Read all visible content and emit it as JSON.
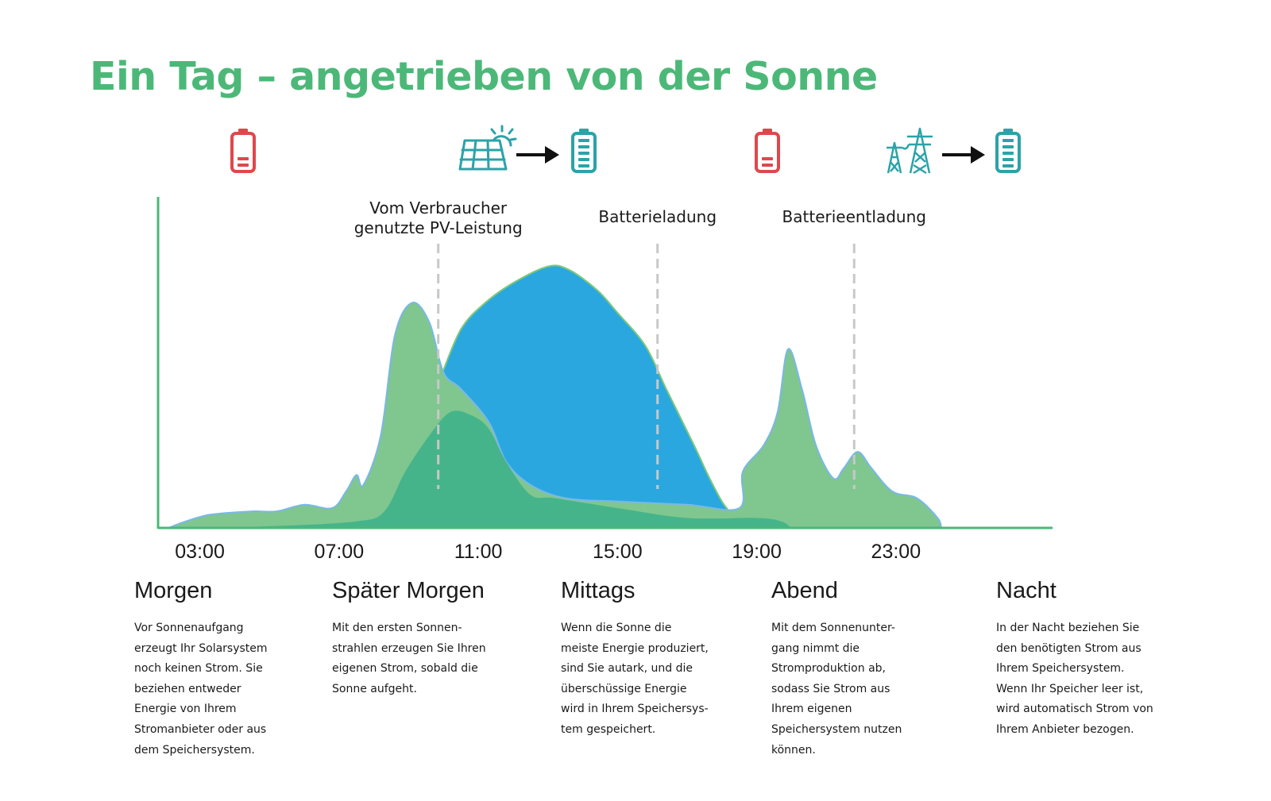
{
  "title": "Ein Tag – angetrieben von der Sonne",
  "colors": {
    "accent": "#4cb878",
    "battery_empty": "#e0474c",
    "battery_full": "#2ba3a8",
    "pv_direct": "#2ba7e0",
    "consumption": "#80c68f",
    "battery_charge": "#46b48a",
    "axis": "#4cb878",
    "guide": "#c8c8c8"
  },
  "icons": [
    {
      "name": "battery-empty-icon",
      "state": "empty"
    },
    {
      "name": "solar-panel-icon"
    },
    {
      "name": "arrow-right-icon"
    },
    {
      "name": "battery-full-icon",
      "state": "full"
    },
    {
      "name": "battery-empty-icon",
      "state": "empty"
    },
    {
      "name": "power-pylon-icon"
    },
    {
      "name": "arrow-right-icon"
    },
    {
      "name": "battery-full-icon",
      "state": "full"
    }
  ],
  "chart_data": {
    "type": "area",
    "title": "",
    "xlabel": "",
    "ylabel": "",
    "x_unit": "hours",
    "xlim": [
      1.8,
      27.5
    ],
    "ylim": [
      0,
      1.0
    ],
    "x_ticks": [
      {
        "x": 3,
        "label": "03:00"
      },
      {
        "x": 7,
        "label": "07:00"
      },
      {
        "x": 11,
        "label": "11:00"
      },
      {
        "x": 15,
        "label": "15:00"
      },
      {
        "x": 19,
        "label": "19:00"
      },
      {
        "x": 23,
        "label": "23:00"
      }
    ],
    "annotations": [
      {
        "x": 9.85,
        "lines": [
          "Vom Verbraucher",
          "genutzte PV-Leistung"
        ]
      },
      {
        "x": 16.15,
        "lines": [
          "Batterieladung"
        ]
      },
      {
        "x": 21.8,
        "lines": [
          "Batterieentladung"
        ]
      }
    ],
    "series": [
      {
        "key": "pv",
        "fill": "#2ba7e0",
        "points": [
          [
            9.9,
            0.45
          ],
          [
            10.5,
            0.6
          ],
          [
            11.2,
            0.68
          ],
          [
            12,
            0.74
          ],
          [
            13,
            0.79
          ],
          [
            13.6,
            0.78
          ],
          [
            14.4,
            0.72
          ],
          [
            15,
            0.65
          ],
          [
            15.8,
            0.55
          ],
          [
            16.4,
            0.42
          ],
          [
            17.2,
            0.25
          ],
          [
            17.6,
            0.16
          ],
          [
            18,
            0.08
          ],
          [
            18.3,
            0.04
          ],
          [
            18.5,
            0.02
          ]
        ]
      },
      {
        "key": "consumption",
        "fill": "#80c68f",
        "points": [
          [
            2.1,
            0.0
          ],
          [
            2.6,
            0.02
          ],
          [
            3.3,
            0.04
          ],
          [
            4.5,
            0.05
          ],
          [
            5.2,
            0.05
          ],
          [
            6,
            0.07
          ],
          [
            6.8,
            0.06
          ],
          [
            7.2,
            0.11
          ],
          [
            7.5,
            0.16
          ],
          [
            7.7,
            0.13
          ],
          [
            8.2,
            0.28
          ],
          [
            8.6,
            0.58
          ],
          [
            9.1,
            0.68
          ],
          [
            9.6,
            0.62
          ],
          [
            10.0,
            0.47
          ],
          [
            10.5,
            0.42
          ],
          [
            11.3,
            0.32
          ],
          [
            11.8,
            0.2
          ],
          [
            12.5,
            0.13
          ],
          [
            13.5,
            0.09
          ],
          [
            15,
            0.08
          ],
          [
            17,
            0.07
          ],
          [
            18.5,
            0.06
          ],
          [
            18.6,
            0.17
          ],
          [
            19.2,
            0.25
          ],
          [
            19.6,
            0.35
          ],
          [
            19.9,
            0.54
          ],
          [
            20.3,
            0.42
          ],
          [
            20.7,
            0.25
          ],
          [
            21.2,
            0.15
          ],
          [
            21.5,
            0.18
          ],
          [
            21.9,
            0.23
          ],
          [
            22.3,
            0.18
          ],
          [
            22.9,
            0.11
          ],
          [
            23.6,
            0.09
          ],
          [
            24.2,
            0.03
          ],
          [
            24.3,
            0.0
          ]
        ]
      },
      {
        "key": "battery_charge",
        "fill": "#46b48a",
        "points": [
          [
            2.1,
            0.0
          ],
          [
            5,
            0.005
          ],
          [
            7.5,
            0.02
          ],
          [
            8.3,
            0.05
          ],
          [
            8.9,
            0.17
          ],
          [
            9.6,
            0.28
          ],
          [
            10.2,
            0.35
          ],
          [
            10.8,
            0.34
          ],
          [
            11.3,
            0.3
          ],
          [
            11.8,
            0.2
          ],
          [
            12.5,
            0.1
          ],
          [
            13.2,
            0.09
          ],
          [
            15,
            0.06
          ],
          [
            17,
            0.03
          ],
          [
            19,
            0.03
          ],
          [
            19.7,
            0.02
          ],
          [
            20,
            0.0
          ]
        ]
      }
    ]
  },
  "sections": [
    {
      "heading": "Morgen",
      "text": "Vor Sonnenaufgang\nerzeugt Ihr Solarsystem\nnoch keinen Strom. Sie\nbeziehen entweder\nEnergie von Ihrem\nStromanbieter oder aus\ndem Speichersystem."
    },
    {
      "heading": "Später Morgen",
      "text": "Mit den ersten Sonnen-\nstrahlen erzeugen Sie Ihren\neigenen Strom, sobald die\nSonne aufgeht."
    },
    {
      "heading": "Mittags",
      "text": "Wenn die Sonne die\nmeiste Energie produziert,\nsind Sie autark, und die\nüberschüssige Energie\nwird in Ihrem Speichersys-\ntem gespeichert."
    },
    {
      "heading": "Abend",
      "text": "Mit dem Sonnenunter-\ngang nimmt die\nStromproduktion ab,\nsodass Sie Strom aus\nIhrem eigenen\nSpeichersystem nutzen\nkönnen."
    },
    {
      "heading": "Nacht",
      "text": "In der Nacht beziehen Sie\nden benötigten Strom aus\nIhrem Speichersystem.\nWenn Ihr Speicher leer ist,\nwird automatisch Strom von\nIhrem Anbieter bezogen."
    }
  ]
}
